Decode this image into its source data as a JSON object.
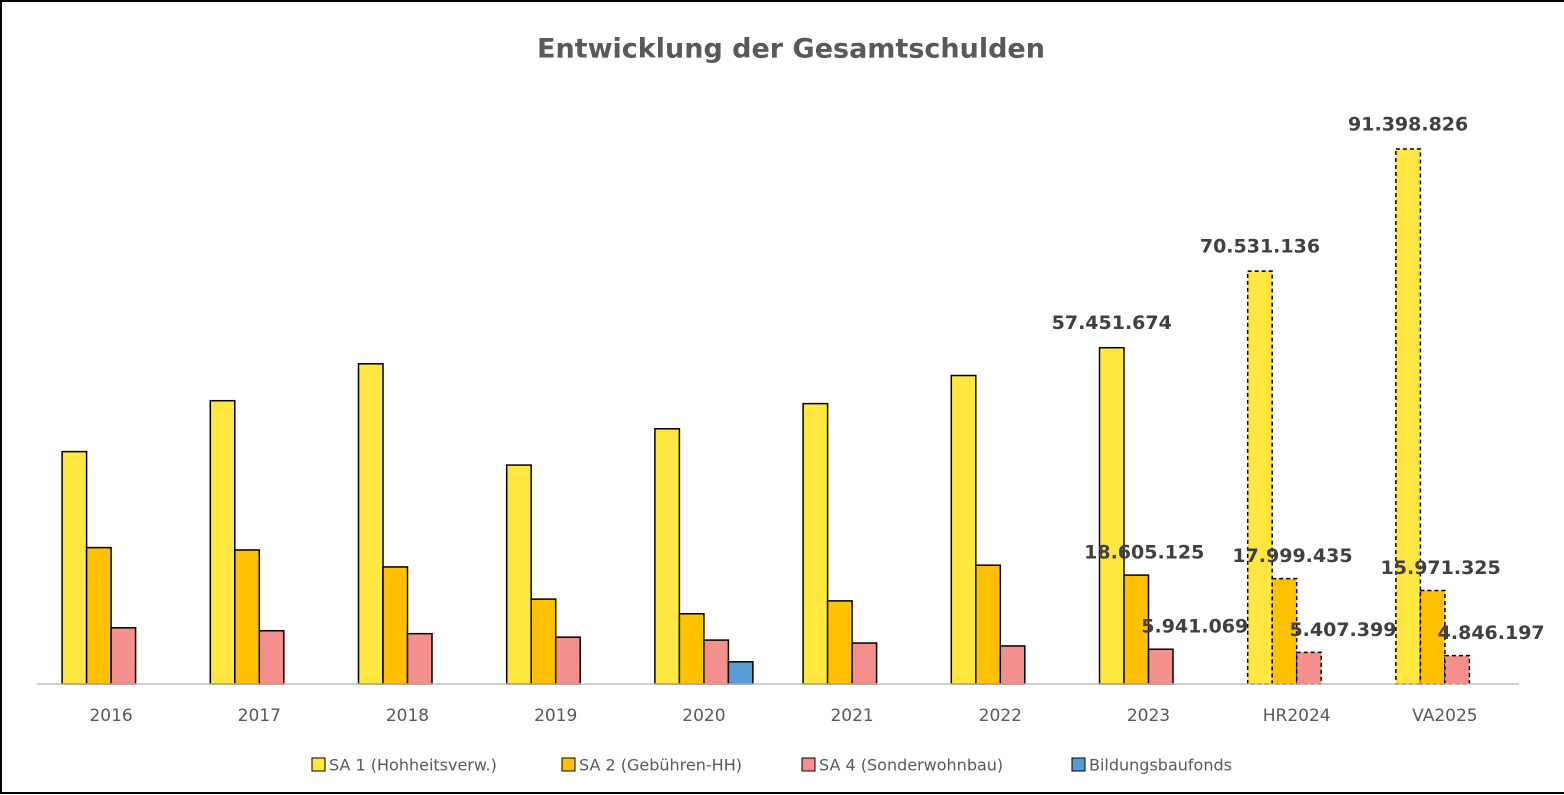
{
  "chart_data": {
    "type": "bar",
    "title": "Entwicklung der Gesamtschulden",
    "categories": [
      "2016",
      "2017",
      "2018",
      "2019",
      "2020",
      "2021",
      "2022",
      "2023",
      "HR2024",
      "VA2025"
    ],
    "dashed": [
      false,
      false,
      false,
      false,
      false,
      false,
      false,
      false,
      true,
      true
    ],
    "series": [
      {
        "name": "SA 1 (Hohheitsverw.)",
        "color": "#ffe640",
        "values": [
          39700000,
          48400000,
          54700000,
          37400000,
          43600000,
          47900000,
          52700000,
          57451674,
          70531136,
          91398826
        ],
        "value_labels": [
          null,
          null,
          null,
          null,
          null,
          null,
          null,
          "57.451.674",
          "70.531.136",
          "91.398.826"
        ]
      },
      {
        "name": "SA 2 (Gebühren-HH)",
        "color": "#ffc000",
        "values": [
          23300000,
          22900000,
          20000000,
          14500000,
          12000000,
          14200000,
          20300000,
          18605125,
          17999435,
          15971325
        ],
        "value_labels": [
          null,
          null,
          null,
          null,
          null,
          null,
          null,
          "18.605.125",
          "17.999.435",
          "15.971.325"
        ]
      },
      {
        "name": "SA 4 (Sonderwohnbau)",
        "color": "#f4908c",
        "values": [
          9600000,
          9100000,
          8600000,
          8000000,
          7500000,
          7000000,
          6500000,
          5941069,
          5407399,
          4846197
        ],
        "value_labels": [
          null,
          null,
          null,
          null,
          null,
          null,
          null,
          "5.941.069",
          "5.407.399",
          "4.846.197"
        ]
      },
      {
        "name": "Bildungsbaufonds",
        "color": "#5b9bd5",
        "values": [
          null,
          null,
          null,
          null,
          3800000,
          null,
          null,
          null,
          null,
          null
        ],
        "value_labels": [
          null,
          null,
          null,
          null,
          null,
          null,
          null,
          null,
          null,
          null
        ]
      }
    ]
  }
}
